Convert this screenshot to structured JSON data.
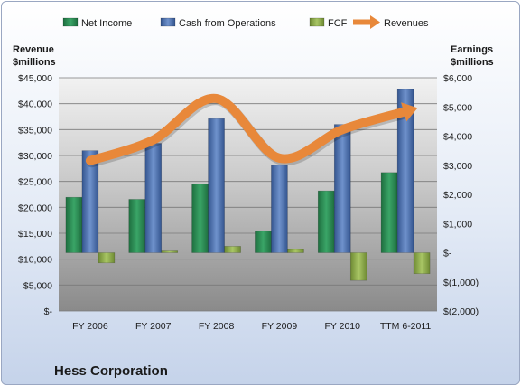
{
  "chart_data": {
    "type": "bar",
    "categories": [
      "FY 2006",
      "FY 2007",
      "FY 2008",
      "FY 2009",
      "FY 2010",
      "TTM 6-2011"
    ],
    "series": [
      {
        "name": "Net Income",
        "axis": "right",
        "kind": "bar",
        "color": "#2e8b57",
        "values": [
          1900,
          1830,
          2360,
          740,
          2120,
          2750
        ]
      },
      {
        "name": "Cash from Operations",
        "axis": "right",
        "kind": "bar",
        "color": "#4f74b3",
        "values": [
          3500,
          3750,
          4600,
          3000,
          4400,
          5600
        ]
      },
      {
        "name": "FCF",
        "axis": "right",
        "kind": "bar",
        "color": "#8fae4a",
        "values": [
          -350,
          60,
          220,
          110,
          -950,
          -720
        ]
      },
      {
        "name": "Revenues",
        "axis": "left",
        "kind": "line",
        "color": "#e8883a",
        "values": [
          29000,
          33000,
          41000,
          29500,
          35000,
          38500
        ]
      }
    ],
    "left_axis": {
      "title_line1": "Revenue",
      "title_line2": "$millions",
      "min": 0,
      "max": 45000,
      "step": 5000,
      "tick_labels": [
        "$-",
        "$5,000",
        "$10,000",
        "$15,000",
        "$20,000",
        "$25,000",
        "$30,000",
        "$35,000",
        "$40,000",
        "$45,000"
      ]
    },
    "right_axis": {
      "title_line1": "Earnings",
      "title_line2": "$millions",
      "min": -2000,
      "max": 6000,
      "step": 1000,
      "tick_labels": [
        "$(2,000)",
        "$(1,000)",
        "$-",
        "$1,000",
        "$2,000",
        "$3,000",
        "$4,000",
        "$5,000",
        "$6,000"
      ]
    },
    "legend_position": "top",
    "grid": true
  },
  "company_name": "Hess Corporation"
}
